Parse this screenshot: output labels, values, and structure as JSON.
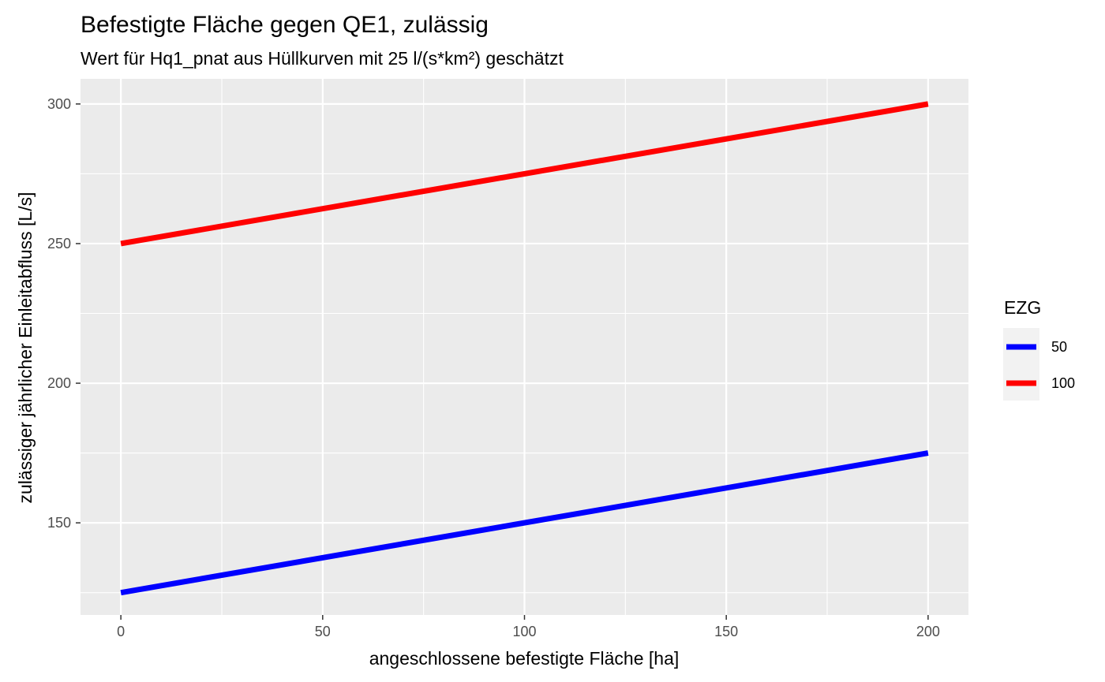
{
  "chart_data": {
    "type": "line",
    "title": "Befestigte Fläche gegen QE1, zulässig",
    "subtitle": "Wert für Hq1_pnat aus Hüllkurven mit 25 l/(s*km²) geschätzt",
    "xlabel": "angeschlossene befestigte Fläche [ha]",
    "ylabel": "zulässiger jährlicher Einleitabfluss [L/s]",
    "xlim": [
      -10,
      210
    ],
    "ylim": [
      117,
      309
    ],
    "x_ticks": [
      0,
      50,
      100,
      150,
      200
    ],
    "y_ticks": [
      150,
      200,
      250,
      300
    ],
    "x_minor": [
      25,
      75,
      125,
      175
    ],
    "y_minor": [
      125,
      175,
      225,
      275
    ],
    "grid": true,
    "panel_background": "#ebebeb",
    "grid_color": "#ffffff",
    "legend_position": "right",
    "legend": {
      "title": "EZG",
      "entries": [
        "50",
        "100"
      ]
    },
    "series": [
      {
        "name": "50",
        "color": "#0000ff",
        "x": [
          0,
          200
        ],
        "y": [
          125,
          175
        ]
      },
      {
        "name": "100",
        "color": "#ff0000",
        "x": [
          0,
          200
        ],
        "y": [
          250,
          300
        ]
      }
    ]
  }
}
